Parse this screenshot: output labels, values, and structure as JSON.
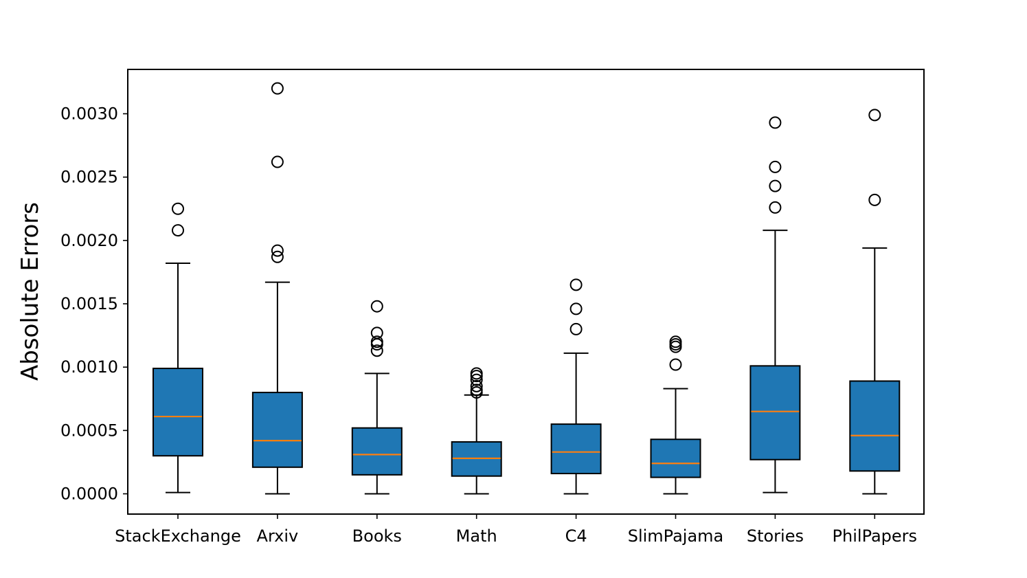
{
  "chart_data": {
    "type": "boxplot",
    "title": "",
    "xlabel": "",
    "ylabel": "Absolute Errors",
    "ylim": [
      -0.00016,
      0.00335
    ],
    "yticks": [
      0.0,
      0.0005,
      0.001,
      0.0015,
      0.002,
      0.0025,
      0.003
    ],
    "ytick_labels": [
      "0.0000",
      "0.0005",
      "0.0010",
      "0.0015",
      "0.0020",
      "0.0025",
      "0.0030"
    ],
    "grid": false,
    "colors": {
      "box_fill": "#1f77b4",
      "median": "#ff7f0e",
      "edge": "#000000"
    },
    "boxes": [
      {
        "name": "StackExchange",
        "whisker_low": 1e-05,
        "q1": 0.0003,
        "median": 0.00061,
        "q3": 0.00099,
        "whisker_high": 0.00182,
        "outliers": [
          0.00225,
          0.00208
        ]
      },
      {
        "name": "Arxiv",
        "whisker_low": 0.0,
        "q1": 0.00021,
        "median": 0.00042,
        "q3": 0.0008,
        "whisker_high": 0.00167,
        "outliers": [
          0.0032,
          0.00262,
          0.00192,
          0.00187
        ]
      },
      {
        "name": "Books",
        "whisker_low": 0.0,
        "q1": 0.00015,
        "median": 0.00031,
        "q3": 0.00052,
        "whisker_high": 0.00095,
        "outliers": [
          0.00148,
          0.00127,
          0.0012,
          0.00118,
          0.00113
        ]
      },
      {
        "name": "Math",
        "whisker_low": 0.0,
        "q1": 0.00014,
        "median": 0.00028,
        "q3": 0.00041,
        "whisker_high": 0.00078,
        "outliers": [
          0.00095,
          0.00093,
          0.0009,
          0.00085,
          0.00082,
          0.0008
        ]
      },
      {
        "name": "C4",
        "whisker_low": 0.0,
        "q1": 0.00016,
        "median": 0.00033,
        "q3": 0.00055,
        "whisker_high": 0.00111,
        "outliers": [
          0.00165,
          0.00146,
          0.0013
        ]
      },
      {
        "name": "SlimPajama",
        "whisker_low": 0.0,
        "q1": 0.00013,
        "median": 0.00024,
        "q3": 0.00043,
        "whisker_high": 0.00083,
        "outliers": [
          0.0012,
          0.00118,
          0.00116,
          0.00102
        ]
      },
      {
        "name": "Stories",
        "whisker_low": 1e-05,
        "q1": 0.00027,
        "median": 0.00065,
        "q3": 0.00101,
        "whisker_high": 0.00208,
        "outliers": [
          0.00293,
          0.00258,
          0.00243,
          0.00226
        ]
      },
      {
        "name": "PhilPapers",
        "whisker_low": 0.0,
        "q1": 0.00018,
        "median": 0.00046,
        "q3": 0.00089,
        "whisker_high": 0.00194,
        "outliers": [
          0.00299,
          0.00232
        ]
      }
    ]
  }
}
